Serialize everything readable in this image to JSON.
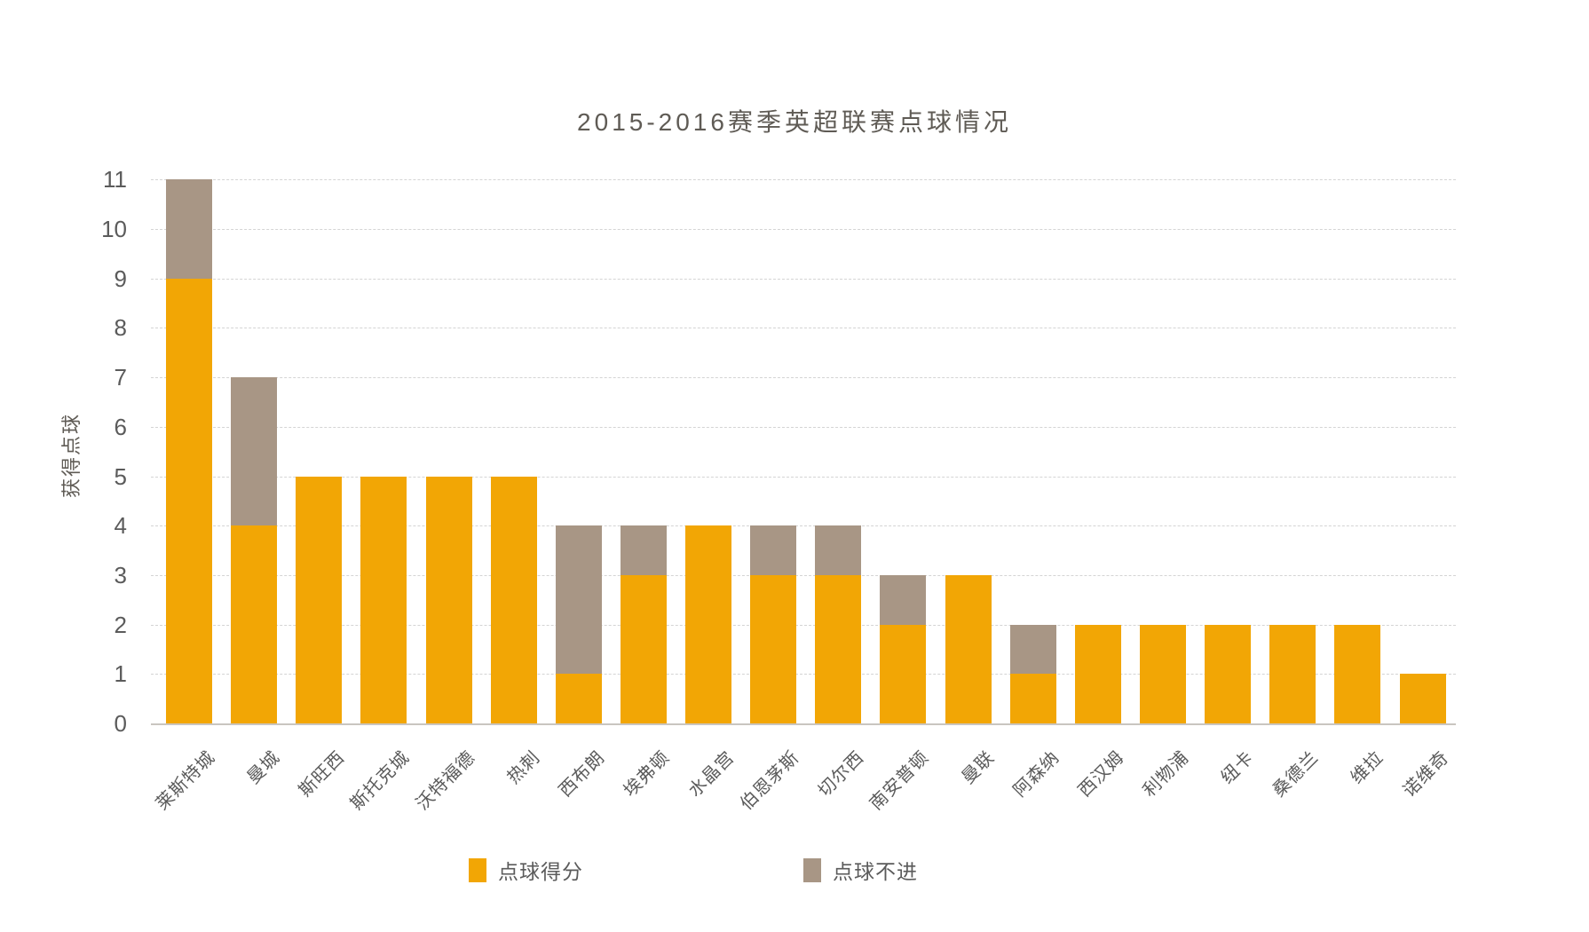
{
  "chart_data": {
    "type": "bar",
    "stacked": true,
    "title": "2015-2016赛季英超联赛点球情况",
    "ylabel": "获得点球",
    "xlabel": "",
    "categories": [
      "莱斯特城",
      "曼城",
      "斯旺西",
      "斯托克城",
      "沃特福德",
      "热刺",
      "西布朗",
      "埃弗顿",
      "水晶宫",
      "伯恩茅斯",
      "切尔西",
      "南安普顿",
      "曼联",
      "阿森纳",
      "西汉姆",
      "利物浦",
      "纽卡",
      "桑德兰",
      "维拉",
      "诺维奇"
    ],
    "series": [
      {
        "name": "点球得分",
        "color": "#F2A605",
        "values": [
          9,
          4,
          5,
          5,
          5,
          5,
          1,
          3,
          4,
          3,
          3,
          2,
          3,
          1,
          2,
          2,
          2,
          2,
          2,
          1
        ]
      },
      {
        "name": "点球不进",
        "color": "#A89685",
        "values": [
          2,
          3,
          0,
          0,
          0,
          0,
          3,
          1,
          0,
          1,
          1,
          1,
          0,
          1,
          0,
          0,
          0,
          0,
          0,
          0
        ]
      }
    ],
    "totals": [
      11,
      7,
      5,
      5,
      5,
      5,
      4,
      4,
      4,
      4,
      4,
      3,
      3,
      2,
      2,
      2,
      2,
      2,
      2,
      1
    ],
    "ylim": [
      0,
      11
    ],
    "yticks": [
      0,
      1,
      2,
      3,
      4,
      5,
      6,
      7,
      8,
      9,
      10,
      11
    ],
    "grid": true,
    "gridline_style": "dashed",
    "legend_position": "bottom"
  },
  "colors": {
    "scored_bar": "#F2A605",
    "missed_bar": "#A89685",
    "gridline": "#D4D4D4",
    "axis_line": "#C9C5C0",
    "text": "#5B5B5B",
    "background": "#FFFFFF"
  }
}
